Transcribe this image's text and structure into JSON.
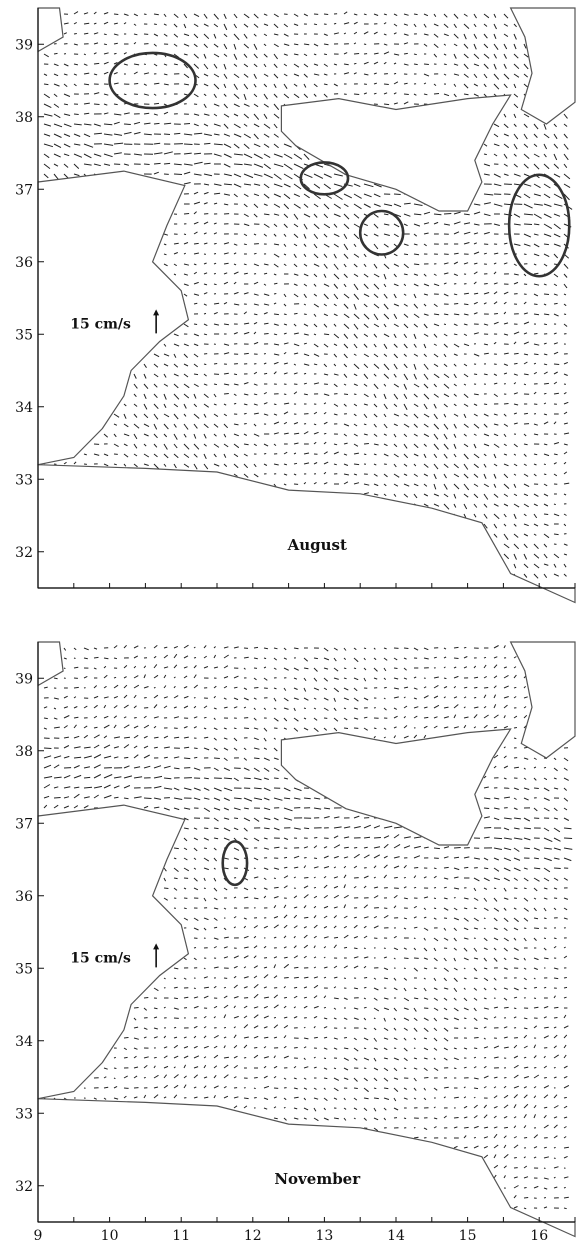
{
  "chart_data": [
    {
      "type": "vector-field",
      "panel_label": "August",
      "scale_label": "15 cm/s",
      "xlim": [
        9,
        16.5
      ],
      "ylim": [
        31.5,
        39.5
      ],
      "yticks": [
        32,
        33,
        34,
        35,
        36,
        37,
        38,
        39
      ],
      "xticks": [],
      "grid": false,
      "eddies": [
        {
          "lon": 10.6,
          "lat": 38.5,
          "rx": 0.6,
          "ry": 0.38
        },
        {
          "lon": 13.0,
          "lat": 37.15,
          "rx": 0.33,
          "ry": 0.22
        },
        {
          "lon": 13.8,
          "lat": 36.4,
          "rx": 0.3,
          "ry": 0.3
        },
        {
          "lon": 16.0,
          "lat": 36.5,
          "rx": 0.42,
          "ry": 0.7
        }
      ]
    },
    {
      "type": "vector-field",
      "panel_label": "November",
      "scale_label": "15 cm/s",
      "xlim": [
        9,
        16.5
      ],
      "ylim": [
        31.5,
        39.5
      ],
      "yticks": [
        32,
        33,
        34,
        35,
        36,
        37,
        38,
        39
      ],
      "xticks": [
        9,
        10,
        11,
        12,
        13,
        14,
        15,
        16
      ],
      "grid": false,
      "eddies": [
        {
          "lon": 11.75,
          "lat": 36.45,
          "rx": 0.17,
          "ry": 0.3
        }
      ]
    }
  ]
}
